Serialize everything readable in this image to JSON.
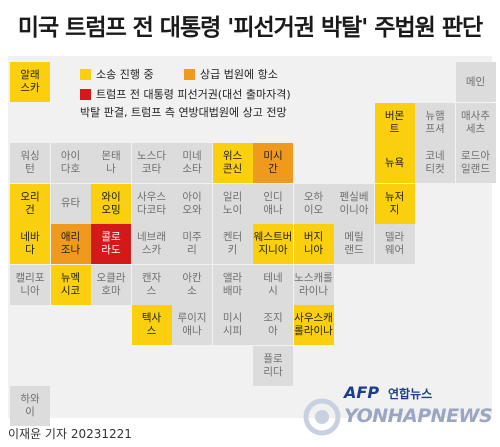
{
  "title": "미국 트럼프 전 대통령 '피선거권 박탈' 주법원 판단",
  "legend": {
    "ongoing": "소송 진행 중",
    "upper_court": "상급 법원에 항소",
    "disqualified_line1": "트럼프 전 대통령 피선거권(대선 출마자격)",
    "disqualified_line2": "박탈 판결, 트럼프 측 연방대법원에 상고 전망"
  },
  "colors": {
    "none": "#dcdcdc",
    "ongoing": "#f9cf0e",
    "upper_court": "#ef9a1d",
    "disqualified": "#d4191a"
  },
  "states": [
    {
      "name": "알래스카",
      "status": "ongoing"
    },
    {
      "name": "메인",
      "status": "none"
    },
    {
      "name": "버몬트",
      "status": "ongoing"
    },
    {
      "name": "뉴햄프셔",
      "status": "none"
    },
    {
      "name": "매사추세츠",
      "status": "none"
    },
    {
      "name": "워싱턴",
      "status": "none"
    },
    {
      "name": "아이다호",
      "status": "none"
    },
    {
      "name": "몬태나",
      "status": "none"
    },
    {
      "name": "노스다코타",
      "status": "none"
    },
    {
      "name": "미네소타",
      "status": "none"
    },
    {
      "name": "위스콘신",
      "status": "ongoing"
    },
    {
      "name": "미시간",
      "status": "upper_court"
    },
    {
      "name": "뉴욕",
      "status": "ongoing"
    },
    {
      "name": "코네티컷",
      "status": "none"
    },
    {
      "name": "로드아일랜드",
      "status": "none"
    },
    {
      "name": "오리건",
      "status": "ongoing"
    },
    {
      "name": "유타",
      "status": "none"
    },
    {
      "name": "와이오밍",
      "status": "ongoing"
    },
    {
      "name": "사우스다코타",
      "status": "none"
    },
    {
      "name": "아이오와",
      "status": "none"
    },
    {
      "name": "일리노이",
      "status": "none"
    },
    {
      "name": "인디애나",
      "status": "none"
    },
    {
      "name": "오하이오",
      "status": "none"
    },
    {
      "name": "펜실베이니아",
      "status": "none"
    },
    {
      "name": "뉴저지",
      "status": "ongoing"
    },
    {
      "name": "네바다",
      "status": "ongoing"
    },
    {
      "name": "애리조나",
      "status": "upper_court"
    },
    {
      "name": "콜로라도",
      "status": "disqualified"
    },
    {
      "name": "네브래스카",
      "status": "none"
    },
    {
      "name": "미주리",
      "status": "none"
    },
    {
      "name": "켄터키",
      "status": "none"
    },
    {
      "name": "웨스트버지니아",
      "status": "ongoing"
    },
    {
      "name": "버지니아",
      "status": "ongoing"
    },
    {
      "name": "메릴랜드",
      "status": "none"
    },
    {
      "name": "델라웨어",
      "status": "none"
    },
    {
      "name": "캘리포니아",
      "status": "none"
    },
    {
      "name": "뉴멕시코",
      "status": "ongoing"
    },
    {
      "name": "오클라호마",
      "status": "none"
    },
    {
      "name": "캔자스",
      "status": "none"
    },
    {
      "name": "아칸소",
      "status": "none"
    },
    {
      "name": "앨라배마",
      "status": "none"
    },
    {
      "name": "테네시",
      "status": "none"
    },
    {
      "name": "노스캐롤라이나",
      "status": "none"
    },
    {
      "name": "텍사스",
      "status": "ongoing"
    },
    {
      "name": "루이지애나",
      "status": "none"
    },
    {
      "name": "미시시피",
      "status": "none"
    },
    {
      "name": "조지아",
      "status": "none"
    },
    {
      "name": "사우스캐롤라이나",
      "status": "ongoing"
    },
    {
      "name": "플로리다",
      "status": "none"
    },
    {
      "name": "하와이",
      "status": "none"
    }
  ],
  "credit": "이재윤 기자  20231221",
  "logos": {
    "afp": "AFP",
    "yonhap_korean": "연합뉴스",
    "yonhap_english": "YONHAPNEWS"
  }
}
